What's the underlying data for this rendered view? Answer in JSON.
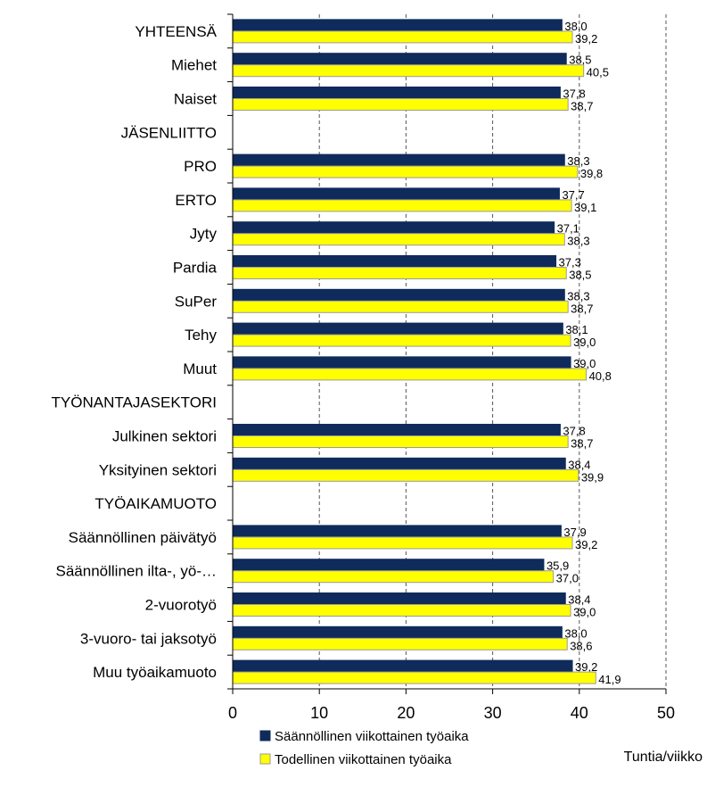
{
  "chart_data": {
    "type": "bar",
    "orientation": "horizontal",
    "categories": [
      "YHTEENSÄ",
      "Miehet",
      "Naiset",
      "JÄSENLIITTO",
      "PRO",
      "ERTO",
      "Jyty",
      "Pardia",
      "SuPer",
      "Tehy",
      "Muut",
      "TYÖNANTAJASEKTORI",
      "Julkinen sektori",
      "Yksityinen sektori",
      "TYÖAIKAMUOTO",
      "Säännöllinen päivätyö",
      "Säännöllinen ilta-, yö-…",
      "2-vuorotyö",
      "3-vuoro- tai jaksotyö",
      "Muu työaikamuoto"
    ],
    "series": [
      {
        "name": "Säännöllinen viikottainen työaika",
        "color": "#0f2b5b",
        "values": [
          38.0,
          38.5,
          37.8,
          null,
          38.3,
          37.7,
          37.1,
          37.3,
          38.3,
          38.1,
          39.0,
          null,
          37.8,
          38.4,
          null,
          37.9,
          35.9,
          38.4,
          38.0,
          39.2
        ],
        "labels": [
          "38,0",
          "38,5",
          "37,8",
          "",
          "38,3",
          "37,7",
          "37,1",
          "37,3",
          "38,3",
          "38,1",
          "39,0",
          "",
          "37,8",
          "38,4",
          "",
          "37,9",
          "35,9",
          "38,4",
          "38,0",
          "39,2"
        ]
      },
      {
        "name": "Todellinen viikottainen työaika",
        "color": "#ffff00",
        "values": [
          39.2,
          40.5,
          38.7,
          null,
          39.8,
          39.1,
          38.3,
          38.5,
          38.7,
          39.0,
          40.8,
          null,
          38.7,
          39.9,
          null,
          39.2,
          37.0,
          39.0,
          38.6,
          41.9
        ],
        "labels": [
          "39,2",
          "40,5",
          "38,7",
          "",
          "39,8",
          "39,1",
          "38,3",
          "38,5",
          "38,7",
          "39,0",
          "40,8",
          "",
          "38,7",
          "39,9",
          "",
          "39,2",
          "37,0",
          "39,0",
          "38,6",
          "41,9"
        ]
      }
    ],
    "xlim": [
      0,
      50
    ],
    "x_ticks": [
      "0",
      "10",
      "20",
      "30",
      "40",
      "50"
    ],
    "xlabel": "Tuntia/viikko",
    "grid": "vertical dashed",
    "legend_position": "bottom-left"
  }
}
